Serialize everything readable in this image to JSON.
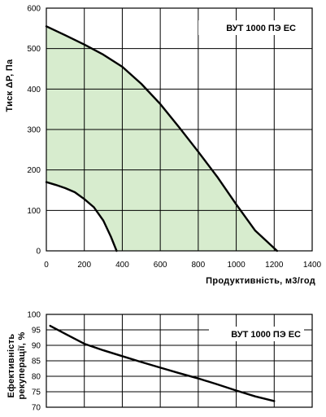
{
  "chart_data": [
    {
      "type": "area",
      "ylabel": "Тиск ΔР, Па",
      "xlabel": "Продуктивність, м3/год",
      "xlim": [
        0,
        1400
      ],
      "ylim": [
        0,
        600
      ],
      "x_ticks": [
        "0",
        "200",
        "400",
        "600",
        "800",
        "1000",
        "1200",
        "1400"
      ],
      "y_ticks": [
        "0",
        "100",
        "200",
        "300",
        "400",
        "500",
        "600"
      ],
      "grid": true,
      "legend": "none",
      "model_label": "ВУТ 1000 ПЭ ЕС",
      "fill_color": "#d7ecce",
      "line_color": "#000000",
      "series": [
        {
          "values": [
            [
              0,
              555
            ],
            [
              100,
              533
            ],
            [
              200,
              510
            ],
            [
              300,
              485
            ],
            [
              400,
              455
            ],
            [
              500,
              413
            ],
            [
              600,
              363
            ],
            [
              700,
              305
            ],
            [
              800,
              245
            ],
            [
              900,
              183
            ],
            [
              1000,
              115
            ],
            [
              1100,
              50
            ],
            [
              1215,
              0
            ]
          ]
        },
        {
          "values": [
            [
              0,
              170
            ],
            [
              50,
              163
            ],
            [
              100,
              155
            ],
            [
              150,
              145
            ],
            [
              200,
              128
            ],
            [
              250,
              108
            ],
            [
              300,
              75
            ],
            [
              340,
              35
            ],
            [
              370,
              0
            ]
          ]
        }
      ]
    },
    {
      "type": "line",
      "ylabel": "Ефективність рекуперації, %",
      "xlim": [
        0,
        1400
      ],
      "ylim": [
        70,
        100
      ],
      "y_ticks": [
        "70",
        "75",
        "80",
        "85",
        "90",
        "95",
        "100"
      ],
      "grid": true,
      "legend": "none",
      "model_label": "ВУТ 1000 ПЭ ЕС",
      "series": [
        {
          "values": [
            [
              20,
              96.3
            ],
            [
              100,
              93.7
            ],
            [
              200,
              90.5
            ],
            [
              300,
              88.4
            ],
            [
              400,
              86.5
            ],
            [
              500,
              84.6
            ],
            [
              600,
              82.8
            ],
            [
              700,
              81.0
            ],
            [
              800,
              79.3
            ],
            [
              900,
              77.4
            ],
            [
              1000,
              75.4
            ],
            [
              1100,
              73.5
            ],
            [
              1200,
              72.0
            ]
          ]
        }
      ]
    }
  ]
}
